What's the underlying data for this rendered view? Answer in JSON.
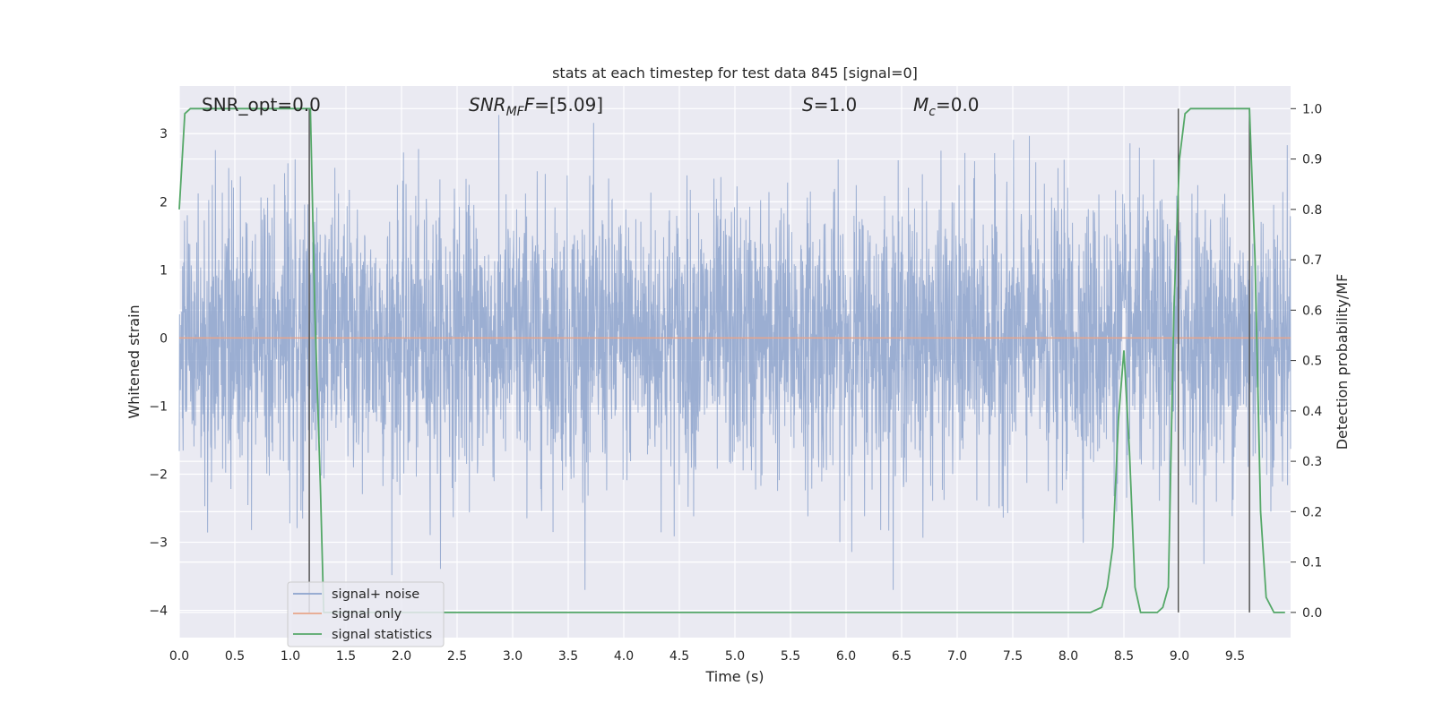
{
  "chart_data": {
    "type": "line",
    "title": "stats at each timestep for test data 845 [signal=0]",
    "xlabel": "Time (s)",
    "ylabel": "Whitened strain",
    "y2label": "Detection probability/MF",
    "xlim": [
      0.0,
      10.0
    ],
    "ylim": [
      -4.4,
      3.7
    ],
    "y2lim": [
      -0.05,
      1.045
    ],
    "xticks": [
      "0.0",
      "0.5",
      "1.0",
      "1.5",
      "2.0",
      "2.5",
      "3.0",
      "3.5",
      "4.0",
      "4.5",
      "5.0",
      "5.5",
      "6.0",
      "6.5",
      "7.0",
      "7.5",
      "8.0",
      "8.5",
      "9.0",
      "9.5"
    ],
    "yticks": [
      3,
      2,
      1,
      0,
      -1,
      -2,
      -3,
      -4
    ],
    "ytick_labels": [
      "3",
      "2",
      "1",
      "0",
      "−1",
      "−2",
      "−3",
      "−4"
    ],
    "y2ticks": [
      1.0,
      0.9,
      0.8,
      0.7,
      0.6,
      0.5,
      0.4,
      0.3,
      0.2,
      0.1,
      0.0
    ],
    "y2tick_labels": [
      "1.0",
      "0.9",
      "0.8",
      "0.7",
      "0.6",
      "0.5",
      "0.4",
      "0.3",
      "0.2",
      "0.1",
      "0.0"
    ],
    "grid": true,
    "legend_position": "lower-left",
    "annotations": {
      "snr_opt": "SNR_opt=0.0",
      "snr_mf_name": "SNR",
      "snr_mf_sub": "MF",
      "snr_mf_value": "=[5.09]",
      "s_name": "S",
      "s_value": "=1.0",
      "mc_name": "M",
      "mc_sub": "c",
      "mc_value": "=0.0"
    },
    "series": [
      {
        "name": "signal+ noise",
        "color": "#8da3cd",
        "note": "whitened noise, approx. unit variance, range about -3.7 to 3.5",
        "envelope_std": 1.0
      },
      {
        "name": "signal only",
        "color": "#e8a58a",
        "x": [
          0.0,
          10.0
        ],
        "y": [
          0.0,
          0.0
        ]
      },
      {
        "name": "signal statistics",
        "color": "#55a868",
        "axis": "right",
        "x": [
          0.0,
          0.05,
          0.1,
          0.2,
          0.3,
          1.0,
          1.1,
          1.18,
          1.22,
          1.27,
          1.3,
          1.35,
          2.0,
          3.0,
          5.0,
          7.0,
          8.0,
          8.2,
          8.3,
          8.35,
          8.4,
          8.45,
          8.5,
          8.55,
          8.6,
          8.65,
          8.7,
          8.8,
          8.85,
          8.9,
          8.95,
          9.0,
          9.05,
          9.1,
          9.2,
          9.5,
          9.6,
          9.63,
          9.68,
          9.73,
          9.78,
          9.85,
          9.95
        ],
        "y": [
          0.8,
          0.99,
          1.0,
          1.0,
          1.0,
          1.0,
          1.0,
          1.0,
          0.6,
          0.25,
          0.0,
          0.0,
          0.0,
          0.0,
          0.0,
          0.0,
          0.0,
          0.0,
          0.01,
          0.05,
          0.13,
          0.38,
          0.52,
          0.32,
          0.05,
          0.0,
          0.0,
          0.0,
          0.01,
          0.05,
          0.6,
          0.9,
          0.99,
          1.0,
          1.0,
          1.0,
          1.0,
          1.0,
          0.7,
          0.2,
          0.03,
          0.0,
          0.0
        ]
      }
    ],
    "marker_lines": {
      "color": "#555555",
      "axis": "right",
      "x": [
        1.17,
        8.99,
        9.63
      ],
      "y_top": 1.0,
      "y_bottom": 0.0
    }
  }
}
